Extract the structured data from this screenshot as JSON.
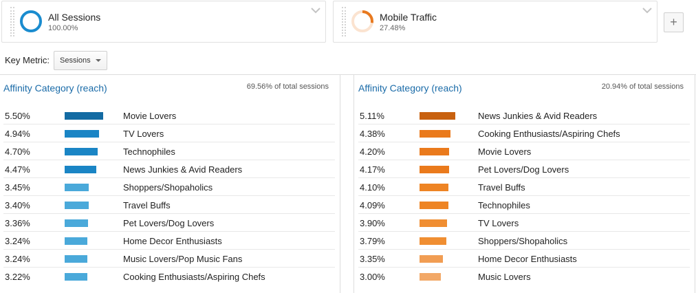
{
  "segments": [
    {
      "name": "All Sessions",
      "percent": "100.00%",
      "fraction": 1.0,
      "color": "#1a8ccf"
    },
    {
      "name": "Mobile Traffic",
      "percent": "27.48%",
      "fraction": 0.2748,
      "color": "#e8791f"
    }
  ],
  "add_segment": {
    "label": "+"
  },
  "key_metric": {
    "label": "Key Metric:",
    "value": "Sessions"
  },
  "panels": [
    {
      "title": "Affinity Category (reach)",
      "total": "69.56% of total sessions",
      "rows": [
        {
          "percent": "5.50%",
          "value": 5.5,
          "category": "Movie Lovers",
          "color": "#136ba3"
        },
        {
          "percent": "4.94%",
          "value": 4.94,
          "category": "TV Lovers",
          "color": "#1a85c5"
        },
        {
          "percent": "4.70%",
          "value": 4.7,
          "category": "Technophiles",
          "color": "#1a85c5"
        },
        {
          "percent": "4.47%",
          "value": 4.47,
          "category": "News Junkies & Avid Readers",
          "color": "#1a85c5"
        },
        {
          "percent": "3.45%",
          "value": 3.45,
          "category": "Shoppers/Shopaholics",
          "color": "#4aa9da"
        },
        {
          "percent": "3.40%",
          "value": 3.4,
          "category": "Travel Buffs",
          "color": "#4aa9da"
        },
        {
          "percent": "3.36%",
          "value": 3.36,
          "category": "Pet Lovers/Dog Lovers",
          "color": "#4aa9da"
        },
        {
          "percent": "3.24%",
          "value": 3.24,
          "category": "Home Decor Enthusiasts",
          "color": "#4aa9da"
        },
        {
          "percent": "3.24%",
          "value": 3.24,
          "category": "Music Lovers/Pop Music Fans",
          "color": "#4aa9da"
        },
        {
          "percent": "3.22%",
          "value": 3.22,
          "category": "Cooking Enthusiasts/Aspiring Chefs",
          "color": "#4aa9da"
        }
      ]
    },
    {
      "title": "Affinity Category (reach)",
      "total": "20.94% of total sessions",
      "rows": [
        {
          "percent": "5.11%",
          "value": 5.11,
          "category": "News Junkies & Avid Readers",
          "color": "#c8610f"
        },
        {
          "percent": "4.38%",
          "value": 4.38,
          "category": "Cooking Enthusiasts/Aspiring Chefs",
          "color": "#ea7a1c"
        },
        {
          "percent": "4.20%",
          "value": 4.2,
          "category": "Movie Lovers",
          "color": "#ea7a1c"
        },
        {
          "percent": "4.17%",
          "value": 4.17,
          "category": "Pet Lovers/Dog Lovers",
          "color": "#ea7a1c"
        },
        {
          "percent": "4.10%",
          "value": 4.1,
          "category": "Travel Buffs",
          "color": "#ee8424"
        },
        {
          "percent": "4.09%",
          "value": 4.09,
          "category": "Technophiles",
          "color": "#ee8424"
        },
        {
          "percent": "3.90%",
          "value": 3.9,
          "category": "TV Lovers",
          "color": "#f08e32"
        },
        {
          "percent": "3.79%",
          "value": 3.79,
          "category": "Shoppers/Shopaholics",
          "color": "#f08e32"
        },
        {
          "percent": "3.35%",
          "value": 3.35,
          "category": "Home Decor Enthusiasts",
          "color": "#f19d53"
        },
        {
          "percent": "3.00%",
          "value": 3.0,
          "category": "Music Lovers",
          "color": "#f2a867"
        }
      ]
    }
  ],
  "icons": {
    "segment_handle": "drag-handle-icon",
    "segment_menu": "chevron-down-icon",
    "select_caret": "caret-down-icon"
  }
}
